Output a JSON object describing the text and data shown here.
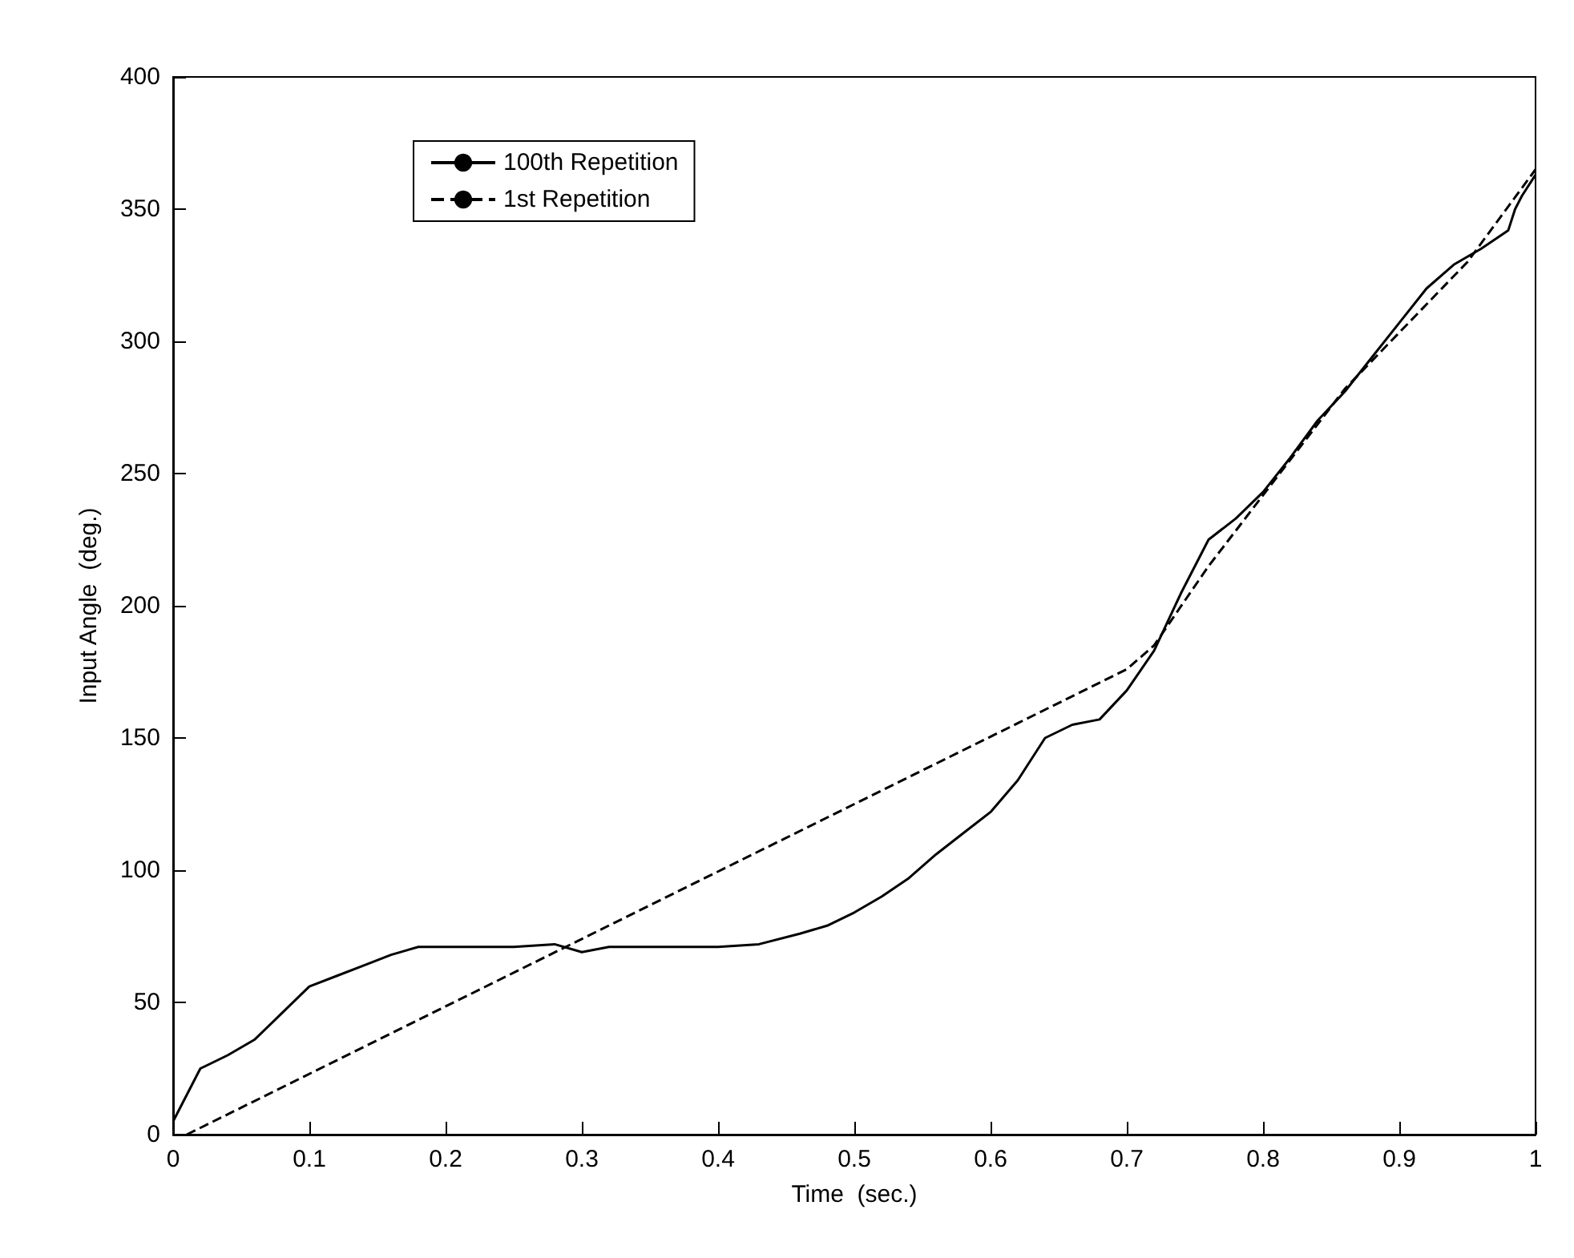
{
  "chart_data": {
    "type": "line",
    "xlabel": "Time  (sec.)",
    "ylabel": "Input Angle  (deg.)",
    "xlim": [
      0,
      1
    ],
    "xticks": [
      0,
      0.1,
      0.2,
      0.3,
      0.4,
      0.5,
      0.6,
      0.7,
      0.8,
      0.9,
      1
    ],
    "ylim": [
      0,
      400
    ],
    "yticks": [
      0,
      50,
      100,
      150,
      200,
      250,
      300,
      350,
      400
    ],
    "grid": false,
    "legend": "top left",
    "marker": "none",
    "series": [
      {
        "name": "100th Repetition",
        "color": "#000000",
        "line_style": "solid",
        "x": [
          0,
          0.02,
          0.04,
          0.06,
          0.08,
          0.1,
          0.12,
          0.14,
          0.16,
          0.18,
          0.2,
          0.25,
          0.28,
          0.3,
          0.32,
          0.4,
          0.43,
          0.46,
          0.48,
          0.5,
          0.52,
          0.54,
          0.56,
          0.58,
          0.6,
          0.62,
          0.64,
          0.66,
          0.68,
          0.7,
          0.72,
          0.74,
          0.76,
          0.78,
          0.8,
          0.82,
          0.84,
          0.86,
          0.88,
          0.9,
          0.92,
          0.94,
          0.96,
          0.98,
          0.985,
          0.99,
          1
        ],
        "values": [
          5,
          25,
          30,
          36,
          46,
          56,
          60,
          64,
          68,
          71,
          71,
          71,
          72,
          69,
          71,
          71,
          72,
          76,
          79,
          84,
          90,
          97,
          106,
          114,
          122,
          134,
          150,
          155,
          157,
          168,
          183,
          205,
          225,
          233,
          243,
          256,
          270,
          281,
          294,
          307,
          320,
          329,
          335,
          342,
          350,
          355,
          363
        ]
      },
      {
        "name": "1st Repetition",
        "color": "#000000",
        "line_style": "dashed",
        "x": [
          0.01,
          0.3,
          0.5,
          0.7,
          0.72,
          0.76,
          0.86,
          0.95,
          1
        ],
        "values": [
          0,
          74,
          125,
          176,
          185,
          215,
          282,
          330,
          365
        ]
      }
    ]
  }
}
